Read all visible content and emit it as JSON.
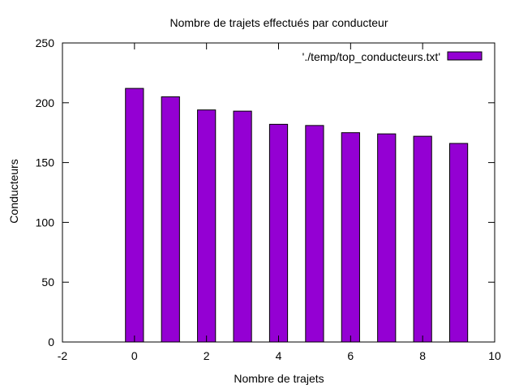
{
  "chart_data": {
    "type": "bar",
    "title": "Nombre de trajets effectués par conducteur",
    "xlabel": "Nombre de trajets",
    "ylabel": "Conducteurs",
    "xlim": [
      -2,
      10
    ],
    "ylim": [
      0,
      250
    ],
    "xticks": [
      -2,
      0,
      2,
      4,
      6,
      8,
      10
    ],
    "yticks": [
      0,
      50,
      100,
      150,
      200,
      250
    ],
    "grid": false,
    "legend_position": "top-right",
    "series": [
      {
        "name": "'./temp/top_conducteurs.txt'",
        "color": "#9400d3",
        "x": [
          0,
          1,
          2,
          3,
          4,
          5,
          6,
          7,
          8,
          9
        ],
        "values": [
          212,
          205,
          194,
          193,
          182,
          181,
          175,
          174,
          172,
          166
        ]
      }
    ]
  }
}
